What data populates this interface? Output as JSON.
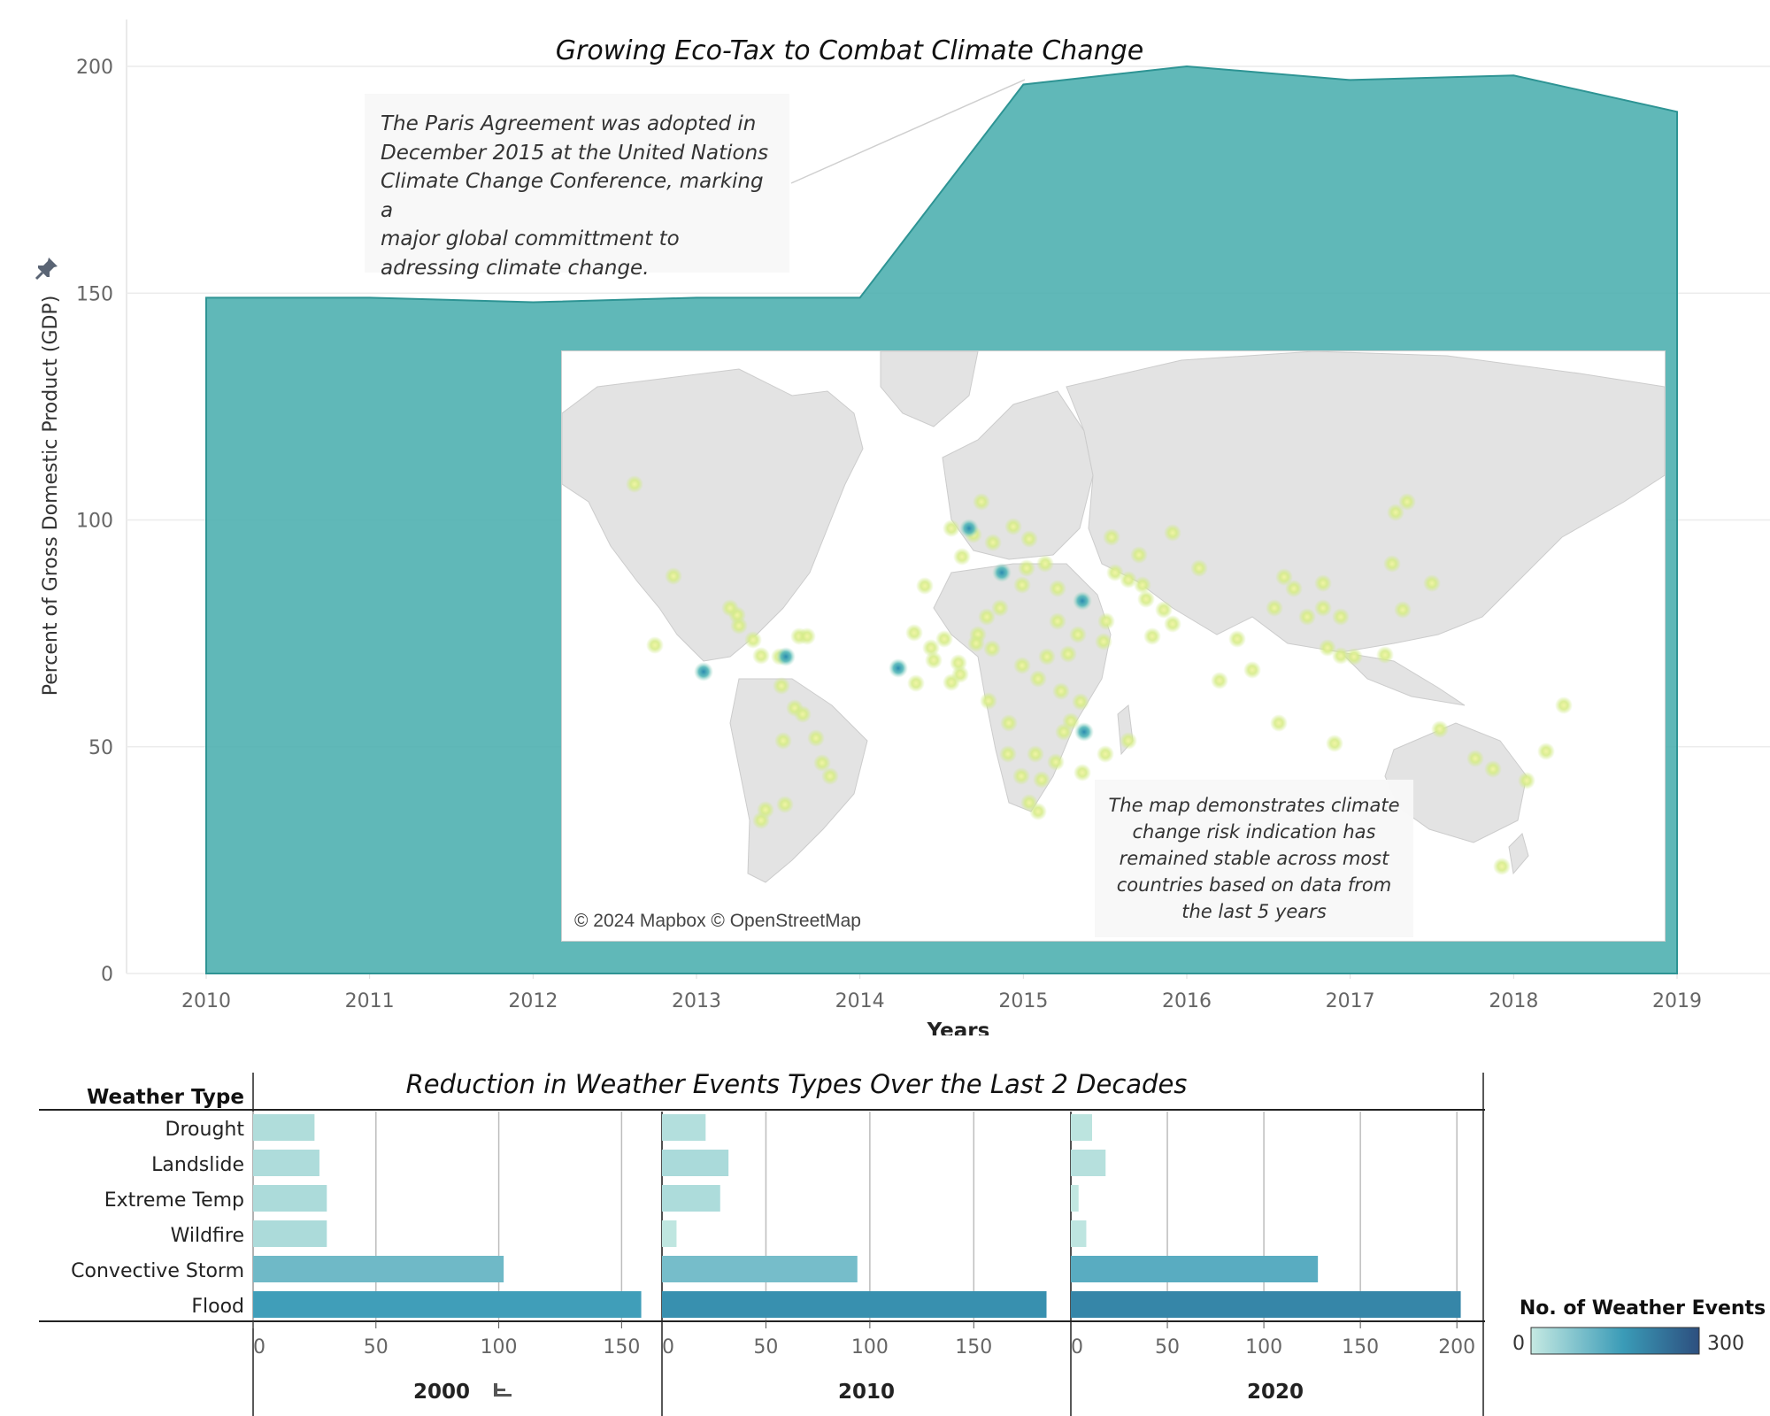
{
  "area_chart": {
    "title": "Growing Eco-Tax to Combat Climate Change",
    "xlabel": "Years",
    "ylabel": "Percent of Gross Domestic Product (GDP)",
    "annotation": [
      "The Paris Agreement was adopted in",
      "December 2015 at the United Nations",
      "Climate Change Conference, marking a",
      "major global committment to",
      "adressing climate change."
    ],
    "pin_icon": "pin-icon"
  },
  "map": {
    "attribution": "© 2024 Mapbox © OpenStreetMap",
    "annotation": [
      "The map demonstrates climate",
      "change risk indication has",
      "remained stable across most",
      "countries based on data from",
      "the last 5 years"
    ]
  },
  "bar_chart": {
    "title": "Reduction in Weather Events Types Over the Last 2 Decades",
    "row_header": "Weather Type",
    "legend_title": "No. of  Weather Events",
    "legend_min": "0",
    "legend_max": "300",
    "sort_icon": "sort-descending-icon"
  },
  "chart_data": [
    {
      "type": "area",
      "title": "Growing Eco-Tax to Combat Climate Change",
      "xlabel": "Years",
      "ylabel": "Percent of Gross Domestic Product (GDP)",
      "x": [
        2010,
        2011,
        2012,
        2013,
        2014,
        2015,
        2016,
        2017,
        2018,
        2019
      ],
      "values": [
        149,
        149,
        148,
        149,
        149,
        196,
        200,
        197,
        198,
        190
      ],
      "ylim": [
        0,
        200
      ],
      "yticks": [
        0,
        50,
        100,
        150,
        200
      ],
      "color": "#4aaeae",
      "grid": true
    },
    {
      "type": "bar",
      "orientation": "horizontal",
      "title": "Reduction in Weather Events Types Over the Last 2 Decades",
      "categories": [
        "Drought",
        "Landslide",
        "Extreme Temp",
        "Wildfire",
        "Convective Storm",
        "Flood"
      ],
      "panels": [
        {
          "name": "2000",
          "values": [
            25,
            27,
            30,
            30,
            102,
            158
          ],
          "xlim": [
            0,
            165
          ],
          "xticks": [
            0,
            50,
            100,
            150
          ]
        },
        {
          "name": "2010",
          "values": [
            21,
            32,
            28,
            7,
            94,
            185
          ],
          "xlim": [
            0,
            195
          ],
          "xticks": [
            0,
            50,
            100,
            150
          ]
        },
        {
          "name": "2020",
          "values": [
            11,
            18,
            4,
            8,
            128,
            202
          ],
          "xlim": [
            0,
            210
          ],
          "xticks": [
            0,
            50,
            100,
            150,
            200
          ]
        }
      ],
      "color_scale": {
        "title": "No. of  Weather Events",
        "min": 0,
        "max": 300,
        "colors": [
          "#c5e9e2",
          "#3a9bb7",
          "#2d4f7f"
        ]
      },
      "grid": true
    }
  ]
}
